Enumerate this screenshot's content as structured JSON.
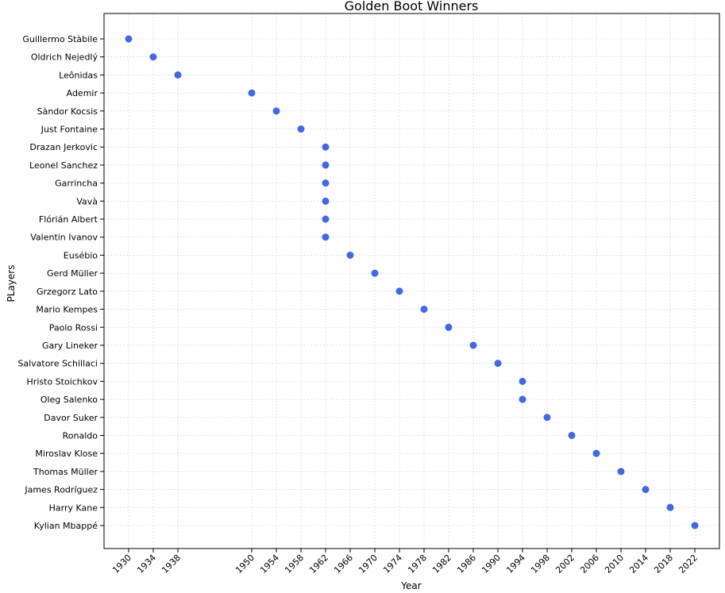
{
  "chart_data": {
    "type": "scatter",
    "title": "Golden Boot Winners",
    "xlabel": "Year",
    "ylabel": "PLayers",
    "grid": true,
    "marker_color": "#4169e1",
    "x_ticks": [
      1930,
      1934,
      1938,
      1950,
      1954,
      1958,
      1962,
      1966,
      1970,
      1974,
      1978,
      1982,
      1986,
      1990,
      1994,
      1998,
      2002,
      2006,
      2010,
      2014,
      2018,
      2022
    ],
    "xlim": [
      1926,
      2026
    ],
    "points": [
      {
        "player": "Guillermo Stàbile",
        "year": 1930
      },
      {
        "player": "Oldrich Nejedlý",
        "year": 1934
      },
      {
        "player": "Leônidas",
        "year": 1938
      },
      {
        "player": "Ademir",
        "year": 1950
      },
      {
        "player": "Sàndor Kocsis",
        "year": 1954
      },
      {
        "player": "Just Fontaine",
        "year": 1958
      },
      {
        "player": "Drazan Jerkovic",
        "year": 1962
      },
      {
        "player": "Leonel Sanchez",
        "year": 1962
      },
      {
        "player": "Garrincha",
        "year": 1962
      },
      {
        "player": "Vavà",
        "year": 1962
      },
      {
        "player": "Flórián Albert",
        "year": 1962
      },
      {
        "player": "Valentin Ivanov",
        "year": 1962
      },
      {
        "player": "Eusébio",
        "year": 1966
      },
      {
        "player": "Gerd Müller",
        "year": 1970
      },
      {
        "player": "Grzegorz Lato",
        "year": 1974
      },
      {
        "player": "Mario Kempes",
        "year": 1978
      },
      {
        "player": "Paolo Rossi",
        "year": 1982
      },
      {
        "player": "Gary Lineker",
        "year": 1986
      },
      {
        "player": "Salvatore Schillaci",
        "year": 1990
      },
      {
        "player": "Hristo Stoichkov",
        "year": 1994
      },
      {
        "player": "Oleg Salenko",
        "year": 1994
      },
      {
        "player": "Davor Suker",
        "year": 1998
      },
      {
        "player": "Ronaldo",
        "year": 2002
      },
      {
        "player": "Miroslav  Klose",
        "year": 2006
      },
      {
        "player": "Thomas Müller",
        "year": 2010
      },
      {
        "player": "James Rodríguez",
        "year": 2014
      },
      {
        "player": "Harry Kane",
        "year": 2018
      },
      {
        "player": "Kylian Mbappé",
        "year": 2022
      }
    ]
  }
}
